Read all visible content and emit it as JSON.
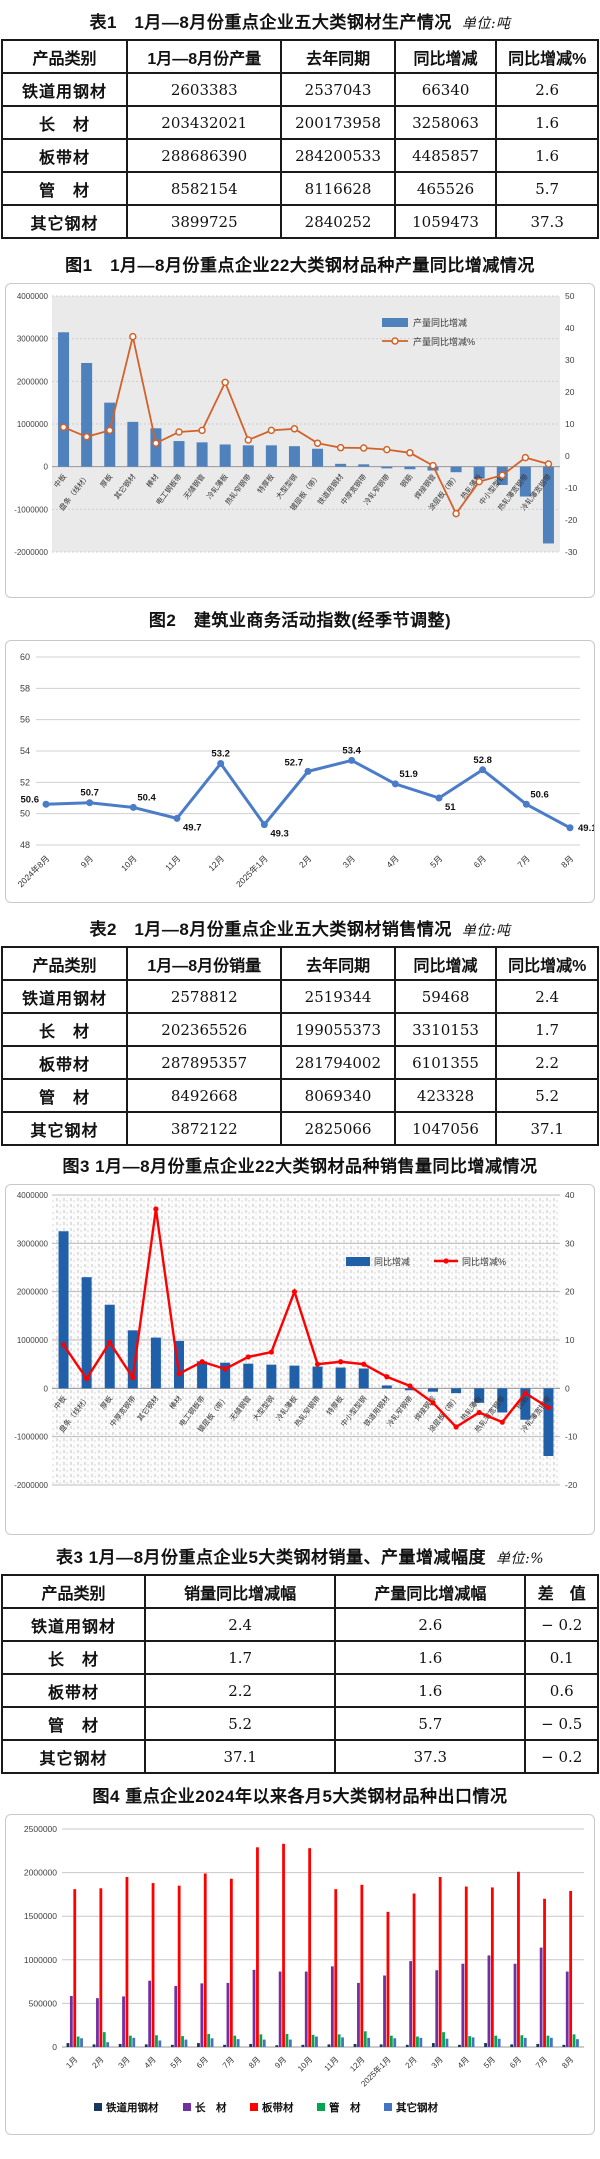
{
  "page": {
    "background": "#ffffff"
  },
  "tables": [
    {
      "title": "表1　1月—8月份重点企业五大类钢材生产情况",
      "unit": "单位:吨",
      "headers": [
        "产品类别",
        "1月—8月份产量",
        "去年同期",
        "同比增减",
        "同比增减%"
      ],
      "rows": [
        [
          "铁道用钢材",
          "2603383",
          "2537043",
          "66340",
          "2.6"
        ],
        [
          "长　材",
          "203432021",
          "200173958",
          "3258063",
          "1.6"
        ],
        [
          "板带材",
          "288686390",
          "284200533",
          "4485857",
          "1.6"
        ],
        [
          "管　材",
          "8582154",
          "8116628",
          "465526",
          "5.7"
        ],
        [
          "其它钢材",
          "3899725",
          "2840252",
          "1059473",
          "37.3"
        ]
      ]
    },
    {
      "title": "表2　1月—8月份重点企业五大类钢材销售情况",
      "unit": "单位:吨",
      "headers": [
        "产品类别",
        "1月—8月份销量",
        "去年同期",
        "同比增减",
        "同比增减%"
      ],
      "rows": [
        [
          "铁道用钢材",
          "2578812",
          "2519344",
          "59468",
          "2.4"
        ],
        [
          "长　材",
          "202365526",
          "199055373",
          "3310153",
          "1.7"
        ],
        [
          "板带材",
          "287895357",
          "281794002",
          "6101355",
          "2.2"
        ],
        [
          "管　材",
          "8492668",
          "8069340",
          "423328",
          "5.2"
        ],
        [
          "其它钢材",
          "3872122",
          "2825066",
          "1047056",
          "37.1"
        ]
      ]
    },
    {
      "title": "表3 1月—8月份重点企业5大类钢材销量、产量增减幅度",
      "unit": "单位:%",
      "headers": [
        "产品类别",
        "销量同比增减幅",
        "产量同比增减幅",
        "差　值"
      ],
      "rows": [
        [
          "铁道用钢材",
          "2.4",
          "2.6",
          "− 0.2"
        ],
        [
          "长　材",
          "1.7",
          "1.6",
          "0.1"
        ],
        [
          "板带材",
          "2.2",
          "1.6",
          "0.6"
        ],
        [
          "管　材",
          "5.2",
          "5.7",
          "− 0.5"
        ],
        [
          "其它钢材",
          "37.1",
          "37.3",
          "− 0.2"
        ]
      ]
    }
  ],
  "chart_data": [
    {
      "id": "fig1",
      "type": "bar",
      "subtype": "combo-bar-line-dual-axis",
      "title": "图1　1月—8月份重点企业22大类钢材品种产量同比增减情况",
      "categories": [
        "中板",
        "盘条（线材）",
        "厚板",
        "其它钢材",
        "棒材",
        "电工钢板带",
        "无缝钢管",
        "冷轧薄板",
        "热轧窄钢带",
        "特厚板",
        "大型型钢",
        "镀层板（带）",
        "铁道用钢材",
        "中厚宽钢带",
        "冷轧窄钢带",
        "钢筋",
        "焊接钢管",
        "涂层板（带）",
        "热轧薄板",
        "中小型型钢",
        "热轧薄宽钢带",
        "冷轧薄宽钢带"
      ],
      "series": [
        {
          "name": "产量同比增减",
          "type": "bar",
          "axis": "left",
          "color": "#4F81BD",
          "values": [
            3150000,
            2430000,
            1500000,
            1050000,
            900000,
            600000,
            570000,
            520000,
            500000,
            500000,
            480000,
            420000,
            66340,
            55000,
            -40000,
            -60000,
            -90000,
            -130000,
            -280000,
            -430000,
            -700000,
            -1800000
          ]
        },
        {
          "name": "产量同比增减%",
          "type": "line",
          "axis": "right",
          "color": "#D2622A",
          "values": [
            9,
            6,
            8,
            37.3,
            4,
            7.5,
            8,
            23,
            5,
            8,
            8.5,
            4,
            2.6,
            2.5,
            2,
            1,
            -3,
            -18,
            -8,
            -6,
            -0.5,
            -2.5
          ]
        }
      ],
      "left_axis": {
        "min": -2000000,
        "max": 4000000,
        "step": 1000000
      },
      "right_axis": {
        "min": -30,
        "max": 50,
        "step": 10
      },
      "legend_position": "top-right",
      "plot_bg": "#EAEAEA"
    },
    {
      "id": "fig2",
      "type": "line",
      "title": "图2　建筑业商务活动指数(经季节调整)",
      "categories": [
        "2024年8月",
        "9月",
        "10月",
        "11月",
        "12月",
        "2025年1月",
        "2月",
        "3月",
        "4月",
        "5月",
        "6月",
        "7月",
        "8月"
      ],
      "values": [
        50.6,
        50.7,
        50.4,
        49.7,
        53.2,
        49.3,
        52.7,
        53.4,
        51.9,
        51,
        52.8,
        50.6,
        49.1
      ],
      "ylim": [
        48,
        60
      ],
      "ystep": 2,
      "color": "#4A7CC7",
      "data_labels": true,
      "grid": true
    },
    {
      "id": "fig3",
      "type": "bar",
      "subtype": "combo-bar-line-dual-axis",
      "title": "图3 1月—8月份重点企业22大类钢材品种销售量同比增减情况",
      "categories": [
        "中板",
        "盘条（线材）",
        "厚板",
        "中厚宽钢带",
        "其它钢材",
        "棒材",
        "电工钢板带",
        "镀层板（带）",
        "无缝钢管",
        "大型型钢",
        "冷轧薄板",
        "热轧窄钢带",
        "特厚板",
        "中小型型钢",
        "铁道用钢材",
        "冷轧窄钢带",
        "焊接钢管",
        "涂层板（带）",
        "热轧薄板",
        "热轧薄宽钢带",
        "钢筋",
        "冷轧薄宽钢带"
      ],
      "series": [
        {
          "name": "同比增减",
          "type": "bar",
          "axis": "left",
          "color": "#2060A8",
          "values": [
            3250000,
            2300000,
            1730000,
            1200000,
            1050000,
            980000,
            560000,
            530000,
            510000,
            490000,
            470000,
            450000,
            430000,
            410000,
            59468,
            -40000,
            -70000,
            -100000,
            -300000,
            -500000,
            -650000,
            -1400000
          ]
        },
        {
          "name": "同比增减%",
          "type": "line",
          "axis": "right",
          "color": "#FF0000",
          "values": [
            9,
            2,
            9.5,
            2.2,
            37.1,
            3,
            5.5,
            4,
            6.5,
            7.5,
            20,
            5,
            5.5,
            5,
            2.4,
            0.5,
            -3,
            -8,
            -5,
            -7,
            -1,
            -4
          ]
        }
      ],
      "left_axis": {
        "min": -2000000,
        "max": 4000000,
        "step": 1000000
      },
      "right_axis": {
        "min": -20,
        "max": 40,
        "step": 10
      },
      "legend_position": "top-right-row",
      "plot_bg": "hatch"
    },
    {
      "id": "fig4",
      "type": "bar",
      "subtype": "grouped-bar",
      "title": "图4 重点企业2024年以来各月5大类钢材品种出口情况",
      "categories": [
        "1月",
        "2月",
        "3月",
        "4月",
        "5月",
        "6月",
        "7月",
        "8月",
        "9月",
        "10月",
        "11月",
        "12月",
        "2025年1月",
        "2月",
        "3月",
        "4月",
        "5月",
        "6月",
        "7月",
        "8月"
      ],
      "series": [
        {
          "name": "铁道用钢材",
          "color": "#17375E",
          "values": [
            45000,
            30000,
            35000,
            30000,
            25000,
            45000,
            25000,
            35000,
            20000,
            25000,
            30000,
            35000,
            30000,
            25000,
            45000,
            25000,
            45000,
            30000,
            35000,
            25000
          ]
        },
        {
          "name": "长　材",
          "color": "#7030A0",
          "values": [
            585000,
            560000,
            580000,
            760000,
            700000,
            730000,
            735000,
            885000,
            865000,
            865000,
            925000,
            735000,
            820000,
            985000,
            880000,
            955000,
            1050000,
            955000,
            1140000,
            865000
          ]
        },
        {
          "name": "板带材",
          "color": "#FF0000",
          "values": [
            1810000,
            1820000,
            1950000,
            1880000,
            1850000,
            1990000,
            1930000,
            2290000,
            2330000,
            2280000,
            1810000,
            1860000,
            1550000,
            1760000,
            1950000,
            1840000,
            1830000,
            2010000,
            1700000,
            1790000
          ]
        },
        {
          "name": "管　材",
          "color": "#00A550",
          "values": [
            120000,
            170000,
            130000,
            135000,
            125000,
            150000,
            130000,
            145000,
            150000,
            140000,
            145000,
            180000,
            130000,
            120000,
            170000,
            125000,
            130000,
            135000,
            130000,
            145000
          ]
        },
        {
          "name": "其它钢材",
          "color": "#4472C4",
          "values": [
            100000,
            55000,
            105000,
            75000,
            85000,
            100000,
            90000,
            85000,
            85000,
            120000,
            110000,
            105000,
            100000,
            105000,
            95000,
            110000,
            95000,
            105000,
            105000,
            90000
          ]
        }
      ],
      "ylim": [
        0,
        2500000
      ],
      "ystep": 500000,
      "legend_position": "bottom"
    }
  ]
}
